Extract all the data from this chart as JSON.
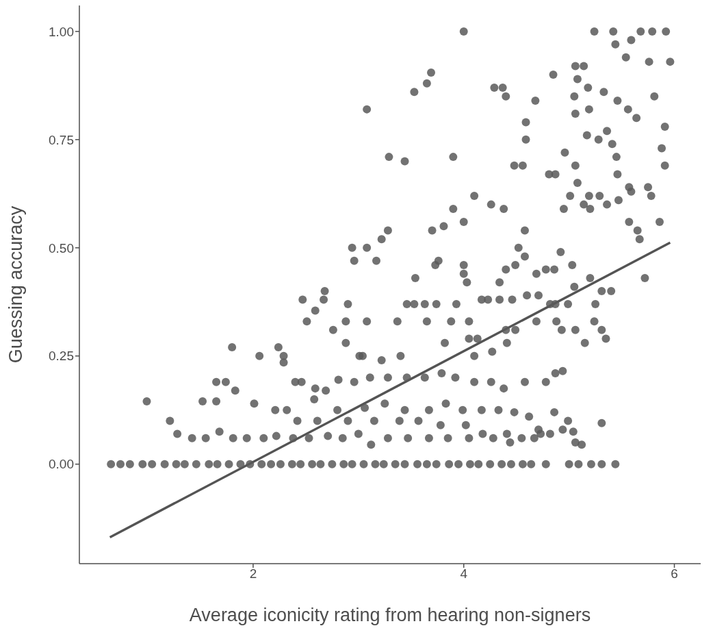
{
  "chart_data": {
    "type": "scatter",
    "xlabel": "Average iconicity rating from hearing non-signers",
    "ylabel": "Guessing accuracy",
    "xlim": [
      0.35,
      6.25
    ],
    "ylim": [
      -0.23,
      1.06
    ],
    "xticks": [
      2,
      4,
      6
    ],
    "yticks": [
      {
        "value": 0,
        "label": "0.00"
      },
      {
        "value": 0.25,
        "label": "0.25"
      },
      {
        "value": 0.5,
        "label": "0.50"
      },
      {
        "value": 0.75,
        "label": "0.75"
      },
      {
        "value": 1,
        "label": "1.00"
      }
    ],
    "series": [
      {
        "marker": "circle",
        "color": "#595959",
        "x": [
          4.0,
          5.24,
          5.42,
          5.68,
          5.79,
          5.92,
          5.59,
          5.44,
          5.06,
          5.14,
          4.85,
          5.54,
          5.76,
          5.96,
          3.69,
          3.65,
          3.53,
          3.08,
          5.08,
          5.18,
          4.37,
          4.29,
          4.4,
          4.68,
          5.05,
          5.06,
          5.19,
          5.33,
          5.46,
          5.56,
          5.64,
          5.81,
          5.91,
          5.88,
          5.91,
          5.17,
          5.28,
          5.36,
          5.41,
          5.45,
          5.46,
          5.57,
          4.59,
          4.59,
          4.96,
          4.87,
          4.81,
          5.06,
          5.08,
          3.9,
          4.48,
          4.56,
          3.29,
          3.44,
          4.1,
          4.26,
          4.38,
          3.9,
          3.81,
          3.7,
          4.0,
          4.95,
          5.01,
          5.14,
          5.2,
          5.19,
          5.29,
          5.36,
          5.47,
          5.59,
          5.75,
          5.78,
          5.86,
          5.65,
          5.57,
          5.67,
          5.72,
          4.58,
          4.52,
          4.58,
          4.49,
          4.4,
          4.34,
          3.76,
          3.73,
          4.0,
          4.0,
          4.03,
          3.93,
          3.22,
          3.28,
          2.94,
          3.08,
          2.96,
          3.17,
          3.54,
          4.92,
          5.03,
          5.05,
          5.2,
          5.31,
          5.4,
          5.25,
          4.87,
          4.82,
          4.99,
          4.69,
          4.78,
          4.86,
          4.71,
          4.6,
          2.47,
          2.9,
          2.67,
          3.46,
          3.53,
          3.63,
          3.74,
          4.17,
          4.23,
          4.34,
          4.46,
          2.59,
          2.68,
          2.51,
          2.76,
          2.88,
          3.08,
          3.37,
          3.65,
          3.88,
          4.05,
          4.4,
          4.49,
          4.69,
          4.88,
          4.93,
          5.06,
          5.15,
          5.24,
          5.31,
          5.35,
          2.88,
          3.01,
          3.04,
          3.22,
          3.4,
          3.82,
          4.05,
          4.13,
          4.41,
          4.27,
          4.1,
          2.06,
          2.24,
          2.29,
          2.29,
          1.8,
          2.4,
          2.46,
          2.59,
          2.69,
          2.81,
          2.96,
          3.11,
          3.28,
          3.46,
          3.63,
          3.79,
          3.92,
          4.1,
          4.26,
          4.38,
          4.58,
          4.78,
          4.87,
          4.94,
          1.65,
          1.74,
          1.83,
          1.52,
          1.65,
          2.01,
          2.21,
          2.32,
          1.21,
          0.99,
          2.58,
          2.8,
          3.06,
          3.25,
          3.44,
          3.67,
          3.83,
          3.99,
          4.17,
          4.33,
          4.48,
          4.62,
          4.71,
          4.86,
          4.99,
          5.04,
          4.94,
          5.31,
          2.42,
          2.61,
          2.9,
          3.15,
          3.39,
          3.57,
          3.78,
          4.02,
          4.18,
          4.41,
          4.55,
          4.73,
          5.06,
          5.12,
          1.28,
          1.42,
          1.55,
          1.68,
          1.81,
          1.94,
          2.1,
          2.22,
          2.38,
          2.53,
          2.71,
          2.85,
          3.0,
          3.12,
          3.28,
          3.47,
          3.67,
          3.85,
          4.05,
          4.28,
          4.44,
          4.67,
          4.82,
          0.65,
          0.74,
          0.83,
          0.95,
          1.04,
          1.16,
          1.27,
          1.35,
          1.46,
          1.58,
          1.66,
          1.77,
          1.88,
          1.97,
          2.08,
          2.17,
          2.26,
          2.37,
          2.45,
          2.56,
          2.64,
          2.75,
          2.86,
          2.94,
          3.05,
          3.16,
          3.24,
          3.35,
          3.44,
          3.56,
          3.65,
          3.74,
          3.86,
          3.95,
          4.06,
          4.14,
          4.25,
          4.36,
          4.45,
          4.56,
          4.64,
          4.78,
          5.0,
          5.09,
          5.21,
          5.31,
          5.44
        ],
        "values": [
          1.0,
          1.0,
          1.0,
          1.0,
          1.0,
          1.0,
          0.98,
          0.97,
          0.92,
          0.92,
          0.9,
          0.94,
          0.93,
          0.93,
          0.905,
          0.88,
          0.86,
          0.82,
          0.89,
          0.87,
          0.87,
          0.87,
          0.85,
          0.84,
          0.85,
          0.81,
          0.82,
          0.86,
          0.84,
          0.82,
          0.8,
          0.85,
          0.78,
          0.73,
          0.69,
          0.76,
          0.75,
          0.77,
          0.74,
          0.71,
          0.67,
          0.64,
          0.79,
          0.75,
          0.72,
          0.67,
          0.67,
          0.69,
          0.65,
          0.71,
          0.69,
          0.69,
          0.71,
          0.7,
          0.62,
          0.6,
          0.59,
          0.59,
          0.55,
          0.54,
          0.56,
          0.59,
          0.62,
          0.6,
          0.59,
          0.62,
          0.62,
          0.6,
          0.61,
          0.63,
          0.64,
          0.62,
          0.56,
          0.54,
          0.56,
          0.52,
          0.43,
          0.54,
          0.5,
          0.48,
          0.46,
          0.45,
          0.42,
          0.47,
          0.46,
          0.46,
          0.44,
          0.42,
          0.37,
          0.52,
          0.54,
          0.5,
          0.5,
          0.47,
          0.47,
          0.43,
          0.49,
          0.46,
          0.41,
          0.43,
          0.4,
          0.4,
          0.37,
          0.37,
          0.37,
          0.37,
          0.44,
          0.45,
          0.45,
          0.39,
          0.39,
          0.38,
          0.37,
          0.38,
          0.37,
          0.37,
          0.37,
          0.37,
          0.38,
          0.38,
          0.38,
          0.38,
          0.355,
          0.4,
          0.33,
          0.31,
          0.33,
          0.33,
          0.33,
          0.33,
          0.33,
          0.33,
          0.31,
          0.31,
          0.33,
          0.33,
          0.31,
          0.31,
          0.28,
          0.33,
          0.31,
          0.29,
          0.28,
          0.25,
          0.25,
          0.24,
          0.25,
          0.28,
          0.29,
          0.29,
          0.28,
          0.26,
          0.25,
          0.25,
          0.27,
          0.25,
          0.235,
          0.27,
          0.19,
          0.19,
          0.175,
          0.17,
          0.195,
          0.19,
          0.2,
          0.2,
          0.2,
          0.2,
          0.21,
          0.2,
          0.19,
          0.19,
          0.175,
          0.19,
          0.19,
          0.21,
          0.215,
          0.19,
          0.19,
          0.17,
          0.145,
          0.145,
          0.14,
          0.125,
          0.125,
          0.1,
          0.145,
          0.15,
          0.125,
          0.13,
          0.14,
          0.125,
          0.125,
          0.14,
          0.125,
          0.125,
          0.125,
          0.12,
          0.11,
          0.08,
          0.12,
          0.1,
          0.075,
          0.08,
          0.095,
          0.1,
          0.1,
          0.1,
          0.1,
          0.1,
          0.1,
          0.09,
          0.09,
          0.07,
          0.07,
          0.06,
          0.07,
          0.05,
          0.045,
          0.07,
          0.06,
          0.06,
          0.075,
          0.06,
          0.06,
          0.06,
          0.065,
          0.06,
          0.06,
          0.065,
          0.06,
          0.07,
          0.045,
          0.06,
          0.06,
          0.06,
          0.06,
          0.06,
          0.06,
          0.05,
          0.06,
          0.07,
          0,
          0,
          0,
          0,
          0,
          0,
          0,
          0,
          0,
          0,
          0,
          0,
          0,
          0,
          0,
          0,
          0,
          0,
          0,
          0,
          0,
          0,
          0,
          0,
          0,
          0,
          0,
          0,
          0,
          0,
          0,
          0,
          0,
          0,
          0,
          0,
          0,
          0,
          0,
          0,
          0,
          0,
          0,
          0,
          0,
          0,
          0
        ]
      },
      {
        "type": "line",
        "color": "#545454",
        "x": [
          0.64,
          5.96
        ],
        "values": [
          -0.169,
          0.512
        ]
      }
    ]
  }
}
